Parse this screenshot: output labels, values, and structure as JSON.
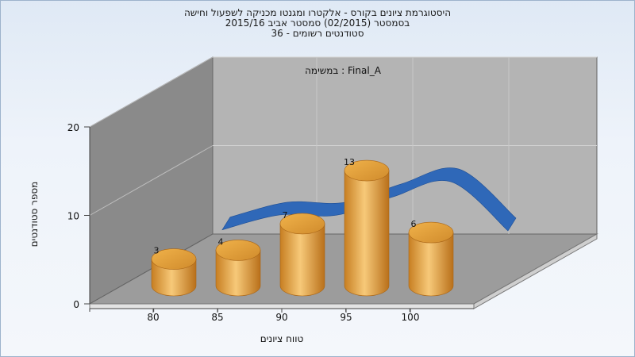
{
  "chart_data": {
    "type": "bar",
    "title_lines": [
      "היסטוגרמת ציונים בקורס - אלקטרו ומגנטו מכניקה לשפעול וחישה",
      "בסמסטר  (02/2015)  סמסטר אביב 2015/16",
      "סטודנטים רשומים - 36"
    ],
    "annotation": "במשימה : Final_A",
    "categories": [
      "80",
      "85",
      "90",
      "95",
      "100"
    ],
    "values": [
      3,
      4,
      7,
      13,
      6
    ],
    "curve_values": [
      7,
      9.5,
      10,
      13,
      15.5,
      9.5
    ],
    "xlabel": "טווח ציונים",
    "ylabel": "מספר סטודנטים",
    "y_ticks": [
      0,
      10,
      20
    ],
    "ylim": [
      0,
      20
    ],
    "bar_color": "#e0a040",
    "curve_color": "#2f68b8",
    "grid": true,
    "legend": "none"
  }
}
